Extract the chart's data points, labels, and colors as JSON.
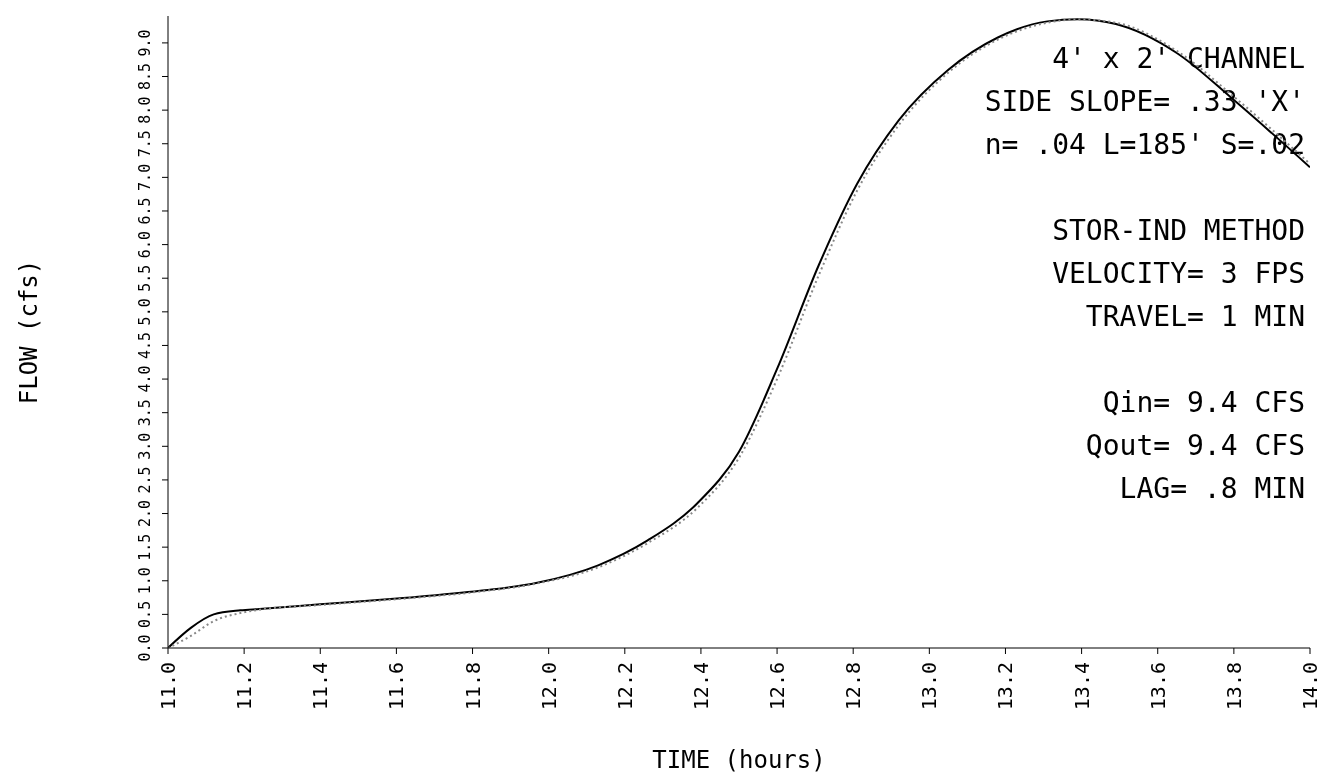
{
  "chart_data": {
    "type": "line",
    "xlabel": "TIME (hours)",
    "ylabel": "FLOW (cfs)",
    "annotations": [
      "4' x 2' CHANNEL\nSIDE SLOPE= .33 'X'\nn= .04 L=185' S=.02",
      "STOR-IND METHOD\nVELOCITY= 3 FPS\nTRAVEL= 1 MIN",
      "Qin= 9.4 CFS\nQout= 9.4 CFS\nLAG= .8 MIN"
    ],
    "xlim": [
      11,
      14
    ],
    "xticks": [
      {
        "value": 11,
        "label": "11.0"
      },
      11.2,
      11.4,
      11.6,
      11.8,
      {
        "value": 12,
        "label": "12.0"
      },
      12.2,
      12.4,
      12.6,
      12.8,
      {
        "value": 13,
        "label": "13.0"
      },
      13.2,
      13.4,
      13.6,
      13.8,
      {
        "value": 14,
        "label": "14.0"
      }
    ],
    "ylim": [
      0,
      9.4
    ],
    "yticks": [
      {
        "value": 0,
        "label": "0.0"
      },
      0.5,
      {
        "value": 1,
        "label": "1.0"
      },
      1.5,
      {
        "value": 2,
        "label": "2.0"
      },
      2.5,
      {
        "value": 3,
        "label": "3.0"
      },
      3.5,
      {
        "value": 4,
        "label": "4.0"
      },
      4.5,
      {
        "value": 5,
        "label": "5.0"
      },
      5.5,
      {
        "value": 6,
        "label": "6.0"
      },
      6.5,
      {
        "value": 7,
        "label": "7.0"
      },
      7.5,
      {
        "value": 8,
        "label": "8.0"
      },
      8.5,
      {
        "value": 9,
        "label": "9.0"
      }
    ],
    "marker": "none",
    "series": [
      {
        "color": "#000000",
        "line_style": "solid",
        "x": [
          11,
          11.06,
          11.12,
          11.19,
          11.24,
          11.4,
          11.61,
          11.82,
          11.97,
          12.13,
          12.26,
          12.39,
          12.5,
          12.6,
          12.71,
          12.81,
          12.92,
          13.05,
          13.18,
          13.31,
          13.39,
          13.49,
          13.65,
          13.8,
          14
        ],
        "values": [
          0,
          0.3,
          0.5,
          0.56,
          0.58,
          0.65,
          0.74,
          0.85,
          0.97,
          1.23,
          1.6,
          2.15,
          2.92,
          4.15,
          5.7,
          6.9,
          7.85,
          8.6,
          9.08,
          9.32,
          9.35,
          9.28,
          8.85,
          8.15,
          7.15
        ]
      },
      {
        "color": "#888888",
        "line_style": "dotted",
        "x": [
          11,
          11.06,
          11.12,
          11.19,
          11.24,
          11.4,
          11.61,
          11.82,
          11.97,
          12.13,
          12.26,
          12.39,
          12.5,
          12.6,
          12.71,
          12.81,
          12.92,
          13.05,
          13.18,
          13.31,
          13.39,
          13.49,
          13.65,
          13.8,
          14
        ],
        "values": [
          0,
          0.18,
          0.4,
          0.52,
          0.57,
          0.64,
          0.73,
          0.84,
          0.96,
          1.2,
          1.56,
          2.08,
          2.83,
          4.0,
          5.55,
          6.8,
          7.78,
          8.56,
          9.05,
          9.3,
          9.35,
          9.3,
          8.88,
          8.2,
          7.2
        ]
      }
    ]
  }
}
